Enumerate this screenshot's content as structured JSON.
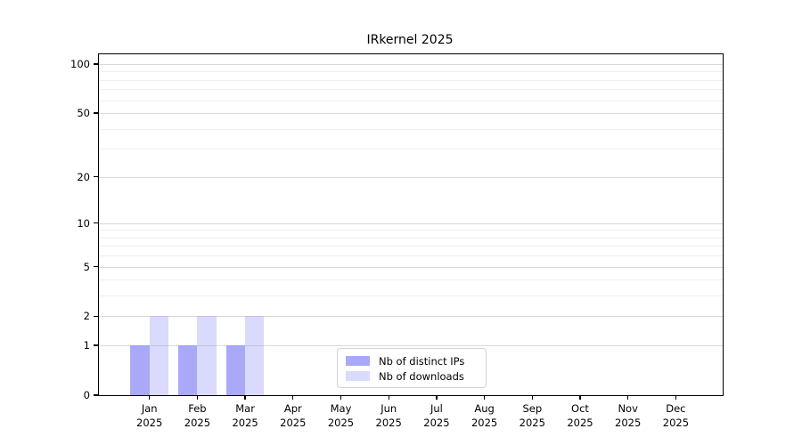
{
  "chart_data": {
    "type": "bar",
    "title": "IRkernel 2025",
    "categories": [
      "Jan",
      "Feb",
      "Mar",
      "Apr",
      "May",
      "Jun",
      "Jul",
      "Aug",
      "Sep",
      "Oct",
      "Nov",
      "Dec"
    ],
    "category_year": "2025",
    "series": [
      {
        "name": "Nb of distinct IPs",
        "color": "rgba(132,132,245,0.70)",
        "values": [
          1,
          1,
          1,
          0,
          0,
          0,
          0,
          0,
          0,
          0,
          0,
          0
        ]
      },
      {
        "name": "Nb of downloads",
        "color": "rgba(150,150,245,0.35)",
        "values": [
          2,
          2,
          2,
          0,
          0,
          0,
          0,
          0,
          0,
          0,
          0,
          0
        ]
      }
    ],
    "yscale": "log1p",
    "ylim": [
      0,
      115
    ],
    "yticks": [
      0,
      1,
      2,
      5,
      10,
      20,
      50,
      100
    ],
    "minor_yticks": [
      3,
      4,
      6,
      7,
      8,
      9,
      30,
      40,
      60,
      70,
      80,
      90
    ],
    "grid": true,
    "legend_position": "lower center"
  },
  "colors": {
    "major_grid": "#d9d9d9",
    "minor_grid": "#efefef",
    "axis": "#000000",
    "legend_border": "#d3d3d3"
  }
}
